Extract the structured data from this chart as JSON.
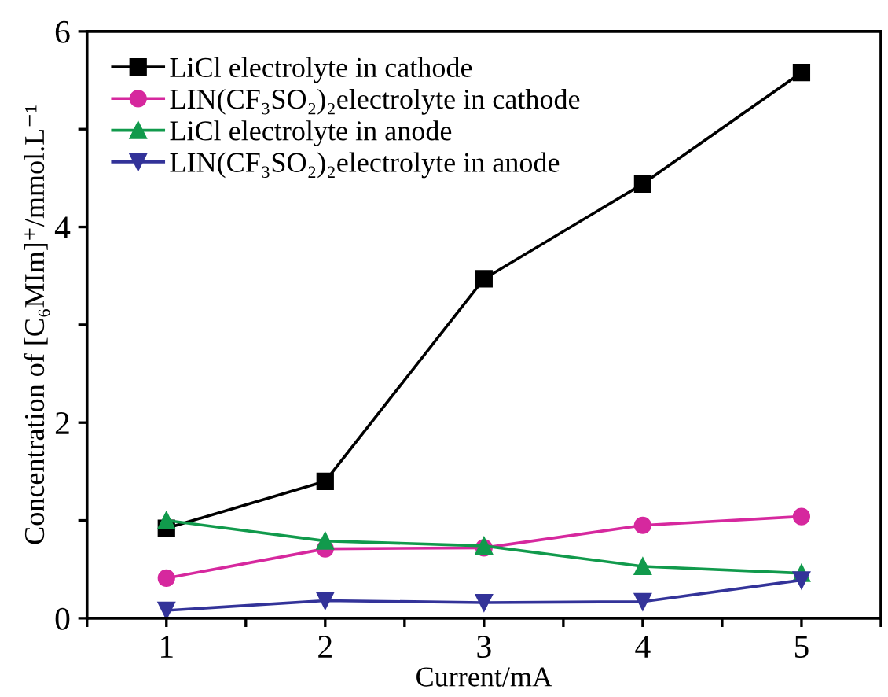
{
  "chart_data": {
    "type": "line",
    "xlabel": "Current/mA",
    "ylabel": "Concentration of [C₆MIm]⁺/mmol.L⁻¹",
    "x": [
      1,
      2,
      3,
      4,
      5
    ],
    "series": [
      {
        "name": "LiCl electrolyte in cathode",
        "color": "#000000",
        "marker": "square",
        "values": [
          0.92,
          1.4,
          3.47,
          4.44,
          5.58
        ]
      },
      {
        "name": "LIN(CF₃SO₂)₂electrolyte in cathode",
        "color": "#d6289e",
        "marker": "circle",
        "values": [
          0.41,
          0.71,
          0.72,
          0.95,
          1.04
        ]
      },
      {
        "name": "LiCl electrolyte in anode",
        "color": "#119a4c",
        "marker": "triangle",
        "values": [
          1.0,
          0.79,
          0.74,
          0.53,
          0.46
        ]
      },
      {
        "name": "LIN(CF₃SO₂)₂electrolyte in anode",
        "color": "#333399",
        "marker": "triangle_down",
        "values": [
          0.08,
          0.18,
          0.16,
          0.17,
          0.39
        ]
      }
    ],
    "xlim": [
      0.5,
      5.5
    ],
    "ylim": [
      0,
      6
    ],
    "xticks": [
      {
        "value": 0.5,
        "label": null
      },
      1,
      {
        "value": 1.5,
        "label": null
      },
      2,
      {
        "value": 2.5,
        "label": null
      },
      3,
      {
        "value": 3.5,
        "label": null
      },
      4,
      {
        "value": 4.5,
        "label": null
      },
      5,
      {
        "value": 5.5,
        "label": null
      }
    ],
    "yticks": [
      0,
      {
        "value": 1,
        "label": null
      },
      2,
      {
        "value": 3,
        "label": null
      },
      4,
      {
        "value": 5,
        "label": null
      },
      6
    ],
    "legend": "top left",
    "grid": false,
    "line_style": "solid"
  }
}
